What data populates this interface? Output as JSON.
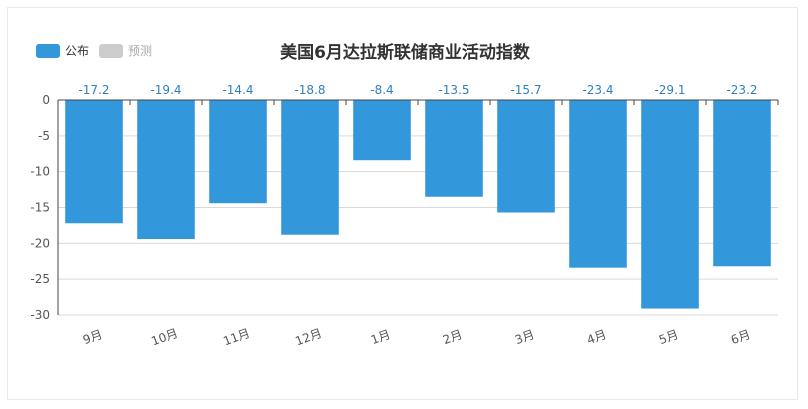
{
  "legend": {
    "items": [
      {
        "label": "公布",
        "color": "#3398DB"
      },
      {
        "label": "预测",
        "color": "#cccccc"
      }
    ]
  },
  "chart_data": {
    "type": "bar",
    "title": "美国6月达拉斯联储商业活动指数",
    "categories": [
      "9月",
      "10月",
      "11月",
      "12月",
      "1月",
      "2月",
      "3月",
      "4月",
      "5月",
      "6月"
    ],
    "series": [
      {
        "name": "公布",
        "values": [
          -17.2,
          -19.4,
          -14.4,
          -18.8,
          -8.4,
          -13.5,
          -15.7,
          -23.4,
          -29.1,
          -23.2
        ]
      }
    ],
    "ylim": [
      -30,
      0
    ],
    "yticks": [
      0,
      -5,
      -10,
      -15,
      -20,
      -25,
      -30
    ],
    "grid": true,
    "legend_position": "top-left",
    "bar_color": "#3398DB",
    "label_color": "#2f7fc1"
  }
}
